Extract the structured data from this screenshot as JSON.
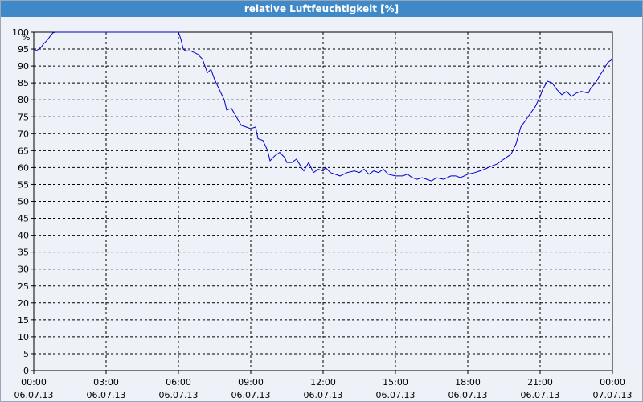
{
  "window": {
    "title": "relative Luftfeuchtigkeit [%]"
  },
  "chart_data": {
    "type": "line",
    "title": "relative Luftfeuchtigkeit [%]",
    "ylabel": "%",
    "xlabel": "",
    "ylim": [
      0,
      100
    ],
    "yticks": [
      0,
      5,
      10,
      15,
      20,
      25,
      30,
      35,
      40,
      45,
      50,
      55,
      60,
      65,
      70,
      75,
      80,
      85,
      90,
      95,
      100
    ],
    "xlim_hours": [
      0,
      24
    ],
    "xticks": [
      {
        "time": "00:00",
        "date": "06.07.13"
      },
      {
        "time": "03:00",
        "date": "06.07.13"
      },
      {
        "time": "06:00",
        "date": "06.07.13"
      },
      {
        "time": "09:00",
        "date": "06.07.13"
      },
      {
        "time": "12:00",
        "date": "06.07.13"
      },
      {
        "time": "15:00",
        "date": "06.07.13"
      },
      {
        "time": "18:00",
        "date": "06.07.13"
      },
      {
        "time": "21:00",
        "date": "06.07.13"
      },
      {
        "time": "00:00",
        "date": "07.07.13"
      }
    ],
    "grid": true,
    "colors": {
      "line": "#0000cc",
      "grid": "#000000",
      "title_bar": "#3f89c9"
    },
    "series": [
      {
        "x": [
          0.0,
          0.1,
          0.2,
          0.3,
          0.4,
          0.5,
          0.6,
          0.7,
          0.8,
          0.9,
          1.0,
          3.0,
          6.0,
          6.1,
          6.2,
          6.3,
          6.5,
          6.8,
          7.0,
          7.2,
          7.35,
          7.5,
          7.7,
          7.9,
          8.0,
          8.2,
          8.4,
          8.6,
          8.8,
          9.0,
          9.2,
          9.3,
          9.5,
          9.7,
          9.8,
          10.0,
          10.2,
          10.4,
          10.5,
          10.7,
          10.9,
          11.1,
          11.2,
          11.4,
          11.6,
          11.8,
          12.0,
          12.1,
          12.3,
          12.5,
          12.7,
          13.0,
          13.3,
          13.5,
          13.7,
          13.9,
          14.1,
          14.3,
          14.5,
          14.7,
          15.0,
          15.3,
          15.5,
          15.7,
          15.9,
          16.1,
          16.3,
          16.5,
          16.7,
          17.0,
          17.3,
          17.5,
          17.7,
          18.0,
          18.3,
          18.5,
          18.7,
          19.0,
          19.2,
          19.4,
          19.6,
          19.8,
          20.0,
          20.2,
          20.4,
          20.6,
          20.8,
          21.0,
          21.1,
          21.3,
          21.5,
          21.7,
          21.9,
          22.1,
          22.3,
          22.5,
          22.7,
          23.0,
          23.1,
          23.3,
          23.5,
          23.6,
          23.8,
          24.0
        ],
        "y": [
          95,
          94.5,
          95,
          95.5,
          96.5,
          97.2,
          98,
          99,
          99.8,
          100,
          100,
          100,
          100,
          98,
          95,
          94.5,
          94.5,
          93.5,
          92,
          88,
          89,
          86,
          83,
          80,
          77,
          77.5,
          75,
          72.5,
          72,
          71.5,
          72,
          68.5,
          68,
          65,
          62,
          63.5,
          64.5,
          63,
          61.5,
          61.5,
          62.5,
          60,
          59,
          61.5,
          58.5,
          59.5,
          59,
          60,
          58.5,
          58,
          57.5,
          58.5,
          59,
          58.5,
          59.5,
          58,
          59,
          58.5,
          59.5,
          58,
          57.5,
          57.5,
          58,
          57,
          56.5,
          57,
          56.5,
          56,
          57,
          56.5,
          57.5,
          57.5,
          57,
          58,
          58.5,
          59,
          59.5,
          60.5,
          61,
          62,
          63,
          64,
          67,
          72,
          74,
          76,
          78,
          81,
          83,
          85.5,
          85,
          83,
          81.5,
          82.5,
          81,
          82,
          82.5,
          82,
          83.5,
          85,
          87.5,
          88.5,
          91,
          92
        ]
      }
    ]
  }
}
